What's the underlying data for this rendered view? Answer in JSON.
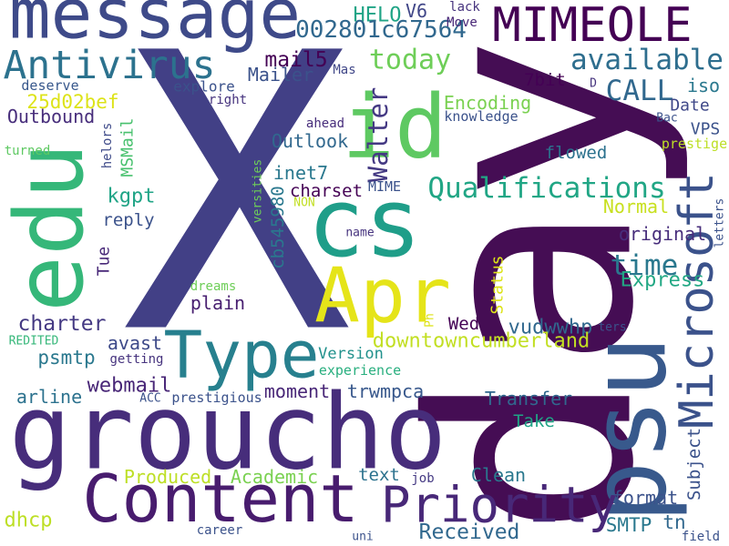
{
  "words": [
    {
      "text": "X",
      "color": "#424086"
    },
    {
      "text": "day",
      "color": "#450d54"
    },
    {
      "text": "groucho",
      "color": "#472d7b"
    },
    {
      "text": "message",
      "color": "#3e4a89"
    },
    {
      "text": "Content",
      "color": "#481c6e"
    },
    {
      "text": "psu",
      "color": "#38598c"
    },
    {
      "text": "Type",
      "color": "#27808e"
    },
    {
      "text": "cs",
      "color": "#1f9e89"
    },
    {
      "text": "id",
      "color": "#5ec962"
    },
    {
      "text": "Apr",
      "color": "#e5e419"
    },
    {
      "text": "edu",
      "color": "#35b779"
    },
    {
      "text": "Microsoft",
      "color": "#3b528b"
    },
    {
      "text": "MIMEOLE",
      "color": "#440154"
    },
    {
      "text": "Priority",
      "color": "#482878"
    },
    {
      "text": "Antivirus",
      "color": "#2c728e"
    },
    {
      "text": "Qualifications",
      "color": "#21a685"
    },
    {
      "text": "available",
      "color": "#2e6e8e"
    },
    {
      "text": "today",
      "color": "#6ece58"
    },
    {
      "text": "CALL",
      "color": "#31688e"
    },
    {
      "text": "time",
      "color": "#2a788e"
    },
    {
      "text": "Walter",
      "color": "#443983"
    },
    {
      "text": "HELO",
      "color": "#20a486"
    },
    {
      "text": "V6",
      "color": "#404688"
    },
    {
      "text": "002801c67564",
      "color": "#31688e"
    },
    {
      "text": "lack",
      "color": "#46337e"
    },
    {
      "text": "Move",
      "color": "#482677"
    },
    {
      "text": "mail5",
      "color": "#440154"
    },
    {
      "text": "Mailer",
      "color": "#3b528b"
    },
    {
      "text": "Mas",
      "color": "#404788"
    },
    {
      "text": "7bit",
      "color": "#440154"
    },
    {
      "text": "25d02bef",
      "color": "#dde318"
    },
    {
      "text": "deserve",
      "color": "#38588c"
    },
    {
      "text": "explore",
      "color": "#3b528b"
    },
    {
      "text": "right",
      "color": "#46337e"
    },
    {
      "text": "Outbound",
      "color": "#472d7b"
    },
    {
      "text": "Encoding",
      "color": "#7ad151"
    },
    {
      "text": "knowledge",
      "color": "#3b528b"
    },
    {
      "text": "D",
      "color": "#46337e"
    },
    {
      "text": "Date",
      "color": "#3f4889"
    },
    {
      "text": "iso",
      "color": "#2a788e"
    },
    {
      "text": "Bac",
      "color": "#3b528b"
    },
    {
      "text": "VPS",
      "color": "#3b528b"
    },
    {
      "text": "prestige",
      "color": "#bddf26"
    },
    {
      "text": "ahead",
      "color": "#472d7b"
    },
    {
      "text": "Outlook",
      "color": "#31688e"
    },
    {
      "text": "helors",
      "color": "#3e4a89"
    },
    {
      "text": "MSMail",
      "color": "#48c16e"
    },
    {
      "text": "turned",
      "color": "#5ec962"
    },
    {
      "text": "flowed",
      "color": "#2c728e"
    },
    {
      "text": "inet7",
      "color": "#2a788e"
    },
    {
      "text": "versities",
      "color": "#6ece58"
    },
    {
      "text": "cb545980",
      "color": "#2a788e"
    },
    {
      "text": "charset",
      "color": "#440154"
    },
    {
      "text": "MIME",
      "color": "#3b528b"
    },
    {
      "text": "NON",
      "color": "#c2df23"
    },
    {
      "text": "kgpt",
      "color": "#20a486"
    },
    {
      "text": "reply",
      "color": "#3b528b"
    },
    {
      "text": "Normal",
      "color": "#c8e020"
    },
    {
      "text": "letters",
      "color": "#3b528b"
    },
    {
      "text": "original",
      "color": "#472d7b"
    },
    {
      "text": "name",
      "color": "#46337e"
    },
    {
      "text": "Tue",
      "color": "#482878"
    },
    {
      "text": "dreams",
      "color": "#6ece58"
    },
    {
      "text": "plain",
      "color": "#481f70"
    },
    {
      "text": "Express",
      "color": "#22a884"
    },
    {
      "text": "Status",
      "color": "#dde318"
    },
    {
      "text": "Ph",
      "color": "#dde318"
    },
    {
      "text": "charter",
      "color": "#443983"
    },
    {
      "text": "Wed",
      "color": "#440154"
    },
    {
      "text": "vudwwhp",
      "color": "#31688e"
    },
    {
      "text": "ters",
      "color": "#3b528b"
    },
    {
      "text": "REDITED",
      "color": "#35b779"
    },
    {
      "text": "avast",
      "color": "#3e4a89"
    },
    {
      "text": "psmtp",
      "color": "#2a788e"
    },
    {
      "text": "getting",
      "color": "#46337e"
    },
    {
      "text": "Version",
      "color": "#21918c"
    },
    {
      "text": "downtowncumberland",
      "color": "#c2df23"
    },
    {
      "text": "experience",
      "color": "#29af7f"
    },
    {
      "text": "webmail",
      "color": "#482677"
    },
    {
      "text": "moment",
      "color": "#482677"
    },
    {
      "text": "trwmpca",
      "color": "#38588c"
    },
    {
      "text": "arline",
      "color": "#2c728e"
    },
    {
      "text": "ACC",
      "color": "#3b528b"
    },
    {
      "text": "prestigious",
      "color": "#3b528b"
    },
    {
      "text": "Transfer",
      "color": "#31688e"
    },
    {
      "text": "Take",
      "color": "#20a486"
    },
    {
      "text": "Subject",
      "color": "#3b528b"
    },
    {
      "text": "Produced",
      "color": "#bddf26"
    },
    {
      "text": "Academic",
      "color": "#7ad151"
    },
    {
      "text": "text",
      "color": "#2c728e"
    },
    {
      "text": "job",
      "color": "#443983"
    },
    {
      "text": "Clean",
      "color": "#2a788e"
    },
    {
      "text": "format",
      "color": "#3b528b"
    },
    {
      "text": "dhcp",
      "color": "#bddf26"
    },
    {
      "text": "SMTP",
      "color": "#2a788e"
    },
    {
      "text": "tn",
      "color": "#31688e"
    },
    {
      "text": "Received",
      "color": "#31688e"
    },
    {
      "text": "career",
      "color": "#3b528b"
    },
    {
      "text": "uni",
      "color": "#3b528b"
    },
    {
      "text": "field",
      "color": "#3b528b"
    }
  ]
}
